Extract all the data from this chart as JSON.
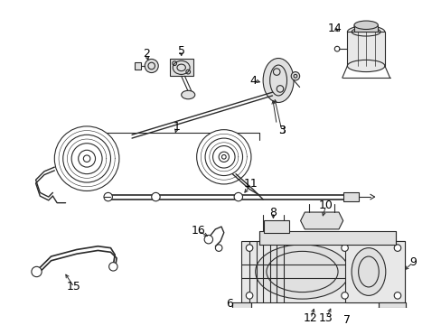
{
  "background_color": "#ffffff",
  "fig_width": 4.89,
  "fig_height": 3.6,
  "dpi": 100,
  "line_color": "#2a2a2a",
  "line_width": 0.8,
  "font_size": 9
}
